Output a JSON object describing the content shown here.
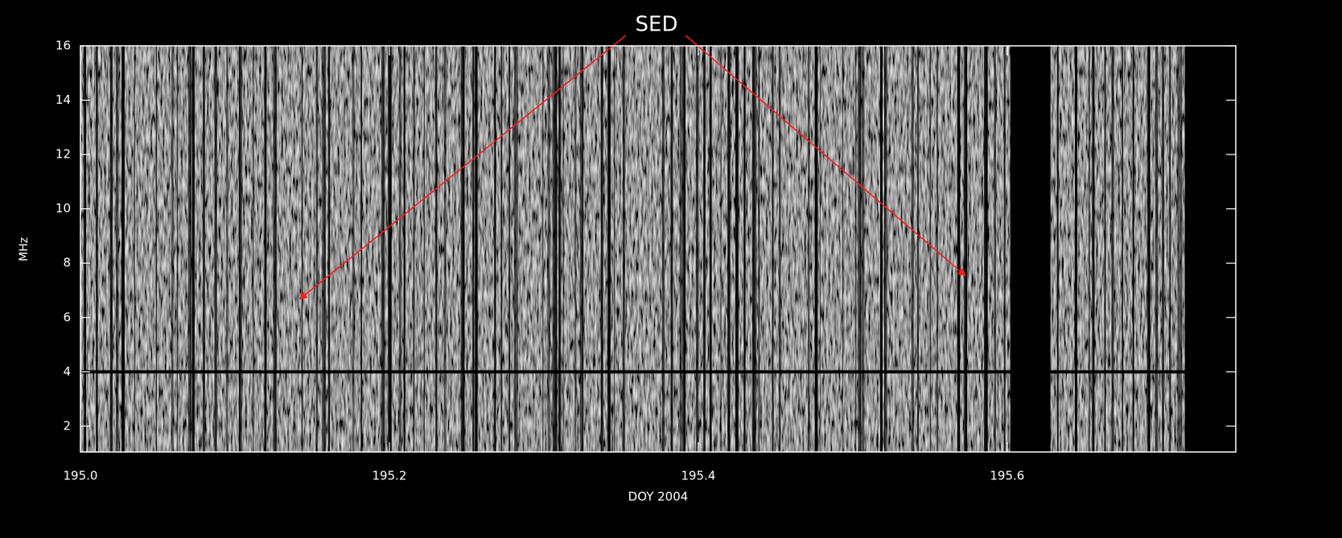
{
  "chart_data": {
    "type": "spectrogram",
    "xlabel": "DOY 2004",
    "ylabel": "MHz",
    "xlim": [
      195.0,
      195.748
    ],
    "ylim": [
      1.05,
      16.0
    ],
    "xticks": [
      {
        "value": 195.0,
        "label": "195.0"
      },
      195.2,
      195.4,
      195.6
    ],
    "yticks": [
      2,
      4,
      6,
      8,
      10,
      12,
      14,
      16
    ],
    "band_edge": 4,
    "gaps": [
      [
        195.602,
        195.628
      ],
      [
        195.715,
        195.748
      ]
    ],
    "annotations": [
      {
        "text": "SED",
        "color": "#ff1a1a",
        "arrows": [
          {
            "x": 195.142,
            "y": 6.68
          },
          {
            "x": 195.573,
            "y": 7.54
          }
        ]
      }
    ]
  }
}
